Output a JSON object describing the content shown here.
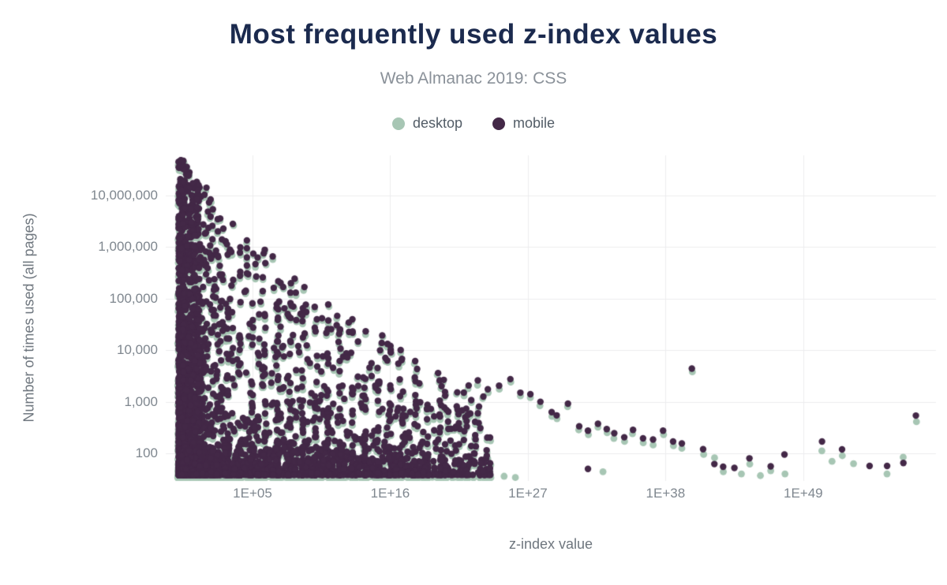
{
  "chart_data": {
    "type": "scatter",
    "title": "Most frequently used z-index values",
    "subtitle": "Web Almanac 2019: CSS",
    "xlabel": "z-index value",
    "ylabel": "Number of times used (all pages)",
    "x_scale": "log",
    "y_scale": "log",
    "x_ticks": [
      {
        "label": "1E+05",
        "exponent": 5
      },
      {
        "label": "1E+16",
        "exponent": 16
      },
      {
        "label": "1E+27",
        "exponent": 27
      },
      {
        "label": "1E+38",
        "exponent": 38
      },
      {
        "label": "1E+49",
        "exponent": 49
      }
    ],
    "y_ticks": [
      {
        "label": "10,000,000",
        "log10": 7
      },
      {
        "label": "1,000,000",
        "log10": 6
      },
      {
        "label": "100,000",
        "log10": 5
      },
      {
        "label": "10,000",
        "log10": 4
      },
      {
        "label": "1,000",
        "log10": 3
      },
      {
        "label": "100",
        "log10": 2
      }
    ],
    "x_range_exponents": [
      -1,
      60
    ],
    "y_range_counts": [
      32,
      55000000
    ],
    "grid": true,
    "legend_position": "top-center",
    "series": [
      {
        "name": "desktop",
        "color": "#a7c6b4"
      },
      {
        "name": "mobile",
        "color": "#432847"
      }
    ],
    "trail_points": [
      {
        "e": 23.0,
        "mobile": 2600,
        "desktop": 2100
      },
      {
        "e": 23.8,
        "mobile": 1750,
        "desktop": 1500
      },
      {
        "e": 24.7,
        "mobile": 2050,
        "desktop": 1750
      },
      {
        "e": 25.6,
        "mobile": 2750,
        "desktop": 2400
      },
      {
        "e": 26.4,
        "mobile": 1500,
        "desktop": 1300
      },
      {
        "e": 27.2,
        "mobile": 1400,
        "desktop": 1200
      },
      {
        "e": 28.0,
        "mobile": 1000,
        "desktop": 840
      },
      {
        "e": 28.9,
        "mobile": 630,
        "desktop": 520
      },
      {
        "e": 29.3,
        "mobile": 545,
        "desktop": 470
      },
      {
        "e": 30.2,
        "mobile": 920,
        "desktop": 800
      },
      {
        "e": 31.1,
        "mobile": 335,
        "desktop": 285
      },
      {
        "e": 31.8,
        "mobile": 275,
        "desktop": 230
      },
      {
        "e": 32.6,
        "mobile": 375,
        "desktop": 320
      },
      {
        "e": 33.3,
        "mobile": 295,
        "desktop": 250
      },
      {
        "e": 33.9,
        "mobile": 245,
        "desktop": 195
      },
      {
        "e": 34.7,
        "mobile": 205,
        "desktop": 170
      },
      {
        "e": 35.4,
        "mobile": 285,
        "desktop": 240
      },
      {
        "e": 36.2,
        "mobile": 195,
        "desktop": 160
      },
      {
        "e": 37.0,
        "mobile": 185,
        "desktop": 145
      },
      {
        "e": 37.8,
        "mobile": 275,
        "desktop": 230
      },
      {
        "e": 38.6,
        "mobile": 170,
        "desktop": 140
      },
      {
        "e": 39.3,
        "mobile": 155,
        "desktop": 125
      },
      {
        "e": 40.1,
        "mobile": 4400,
        "desktop": 3800
      },
      {
        "e": 41.0,
        "mobile": 120,
        "desktop": 95
      },
      {
        "e": 41.9,
        "mobile": 62,
        "desktop": 82
      },
      {
        "e": 42.6,
        "mobile": 55,
        "desktop": 44
      },
      {
        "e": 43.5,
        "mobile": 52,
        "desktop": null
      },
      {
        "e": 44.1,
        "mobile": null,
        "desktop": 40
      },
      {
        "e": 44.7,
        "mobile": 80,
        "desktop": 62
      },
      {
        "e": 45.6,
        "mobile": null,
        "desktop": 37
      },
      {
        "e": 46.4,
        "mobile": 56,
        "desktop": 46
      },
      {
        "e": 47.5,
        "mobile": 95,
        "desktop": 40
      },
      {
        "e": 50.5,
        "mobile": 170,
        "desktop": 112
      },
      {
        "e": 51.3,
        "mobile": null,
        "desktop": 70
      },
      {
        "e": 52.1,
        "mobile": 119,
        "desktop": 90
      },
      {
        "e": 53.0,
        "mobile": null,
        "desktop": 63
      },
      {
        "e": 54.3,
        "mobile": 57,
        "desktop": null
      },
      {
        "e": 55.7,
        "mobile": 57,
        "desktop": 40
      },
      {
        "e": 57.0,
        "mobile": 65,
        "desktop": 84
      },
      {
        "e": 58.0,
        "mobile": 540,
        "desktop": 410
      }
    ],
    "bottom_extras": [
      {
        "e": 20.2,
        "count": 36,
        "series": "desktop"
      },
      {
        "e": 21.2,
        "count": 36,
        "series": "desktop"
      },
      {
        "e": 22.3,
        "count": 35,
        "series": "desktop"
      },
      {
        "e": 23.4,
        "count": 34,
        "series": "desktop"
      },
      {
        "e": 25.1,
        "count": 36,
        "series": "desktop"
      },
      {
        "e": 26.0,
        "count": 34,
        "series": "desktop"
      },
      {
        "e": 31.8,
        "count": 50,
        "series": "mobile"
      },
      {
        "e": 33.0,
        "count": 44,
        "series": "desktop"
      }
    ],
    "feature_column": {
      "e": 4.55,
      "mobile_counts": [
        1350000,
        950000,
        630000,
        440000,
        310000
      ]
    },
    "cloud_render_spec": {
      "comment": "approximation of ~8000 unreadably-dense overlapping points",
      "seed": 1337,
      "pairs": 2300,
      "e_power": 2.4,
      "e_span": 24.9,
      "e_min": -0.9,
      "v_power": 3.0,
      "stripe_fraction": 0.38,
      "wall_points": 520,
      "wall_e_max": 0.8,
      "wall_v_power": 1.25,
      "bottom_points": 720,
      "bottom_e_span": 19.5,
      "bottom_e_power": 1.7,
      "bottom_lc_spread": 0.55,
      "lc_floor": 1.58,
      "envelope_log10_max": [
        [
          -1.0,
          7.74
        ],
        [
          -0.5,
          7.7
        ],
        [
          0,
          7.5
        ],
        [
          0.5,
          7.3
        ],
        [
          1,
          7.15
        ],
        [
          1.5,
          7.2
        ],
        [
          2,
          6.9
        ],
        [
          2.5,
          7.0
        ],
        [
          3,
          6.6
        ],
        [
          4,
          6.4
        ],
        [
          4.5,
          6.45
        ],
        [
          5,
          6.2
        ],
        [
          6,
          5.95
        ],
        [
          7,
          5.75
        ],
        [
          8,
          5.5
        ],
        [
          9,
          5.3
        ],
        [
          10,
          5.1
        ],
        [
          11,
          4.9
        ],
        [
          12,
          4.75
        ],
        [
          13,
          4.6
        ],
        [
          14,
          4.45
        ],
        [
          15,
          4.3
        ],
        [
          16,
          4.45
        ],
        [
          17,
          4.1
        ],
        [
          18,
          3.9
        ],
        [
          19,
          3.7
        ],
        [
          20,
          3.55
        ],
        [
          21,
          3.45
        ],
        [
          22,
          3.4
        ],
        [
          23,
          3.35
        ],
        [
          24,
          3.3
        ]
      ],
      "dot_radius_mobile": 4.2,
      "dot_radius_desktop": 4.4,
      "gridline_color": "#ededee"
    }
  },
  "legend": {
    "desktop_label": "desktop",
    "mobile_label": "mobile"
  }
}
